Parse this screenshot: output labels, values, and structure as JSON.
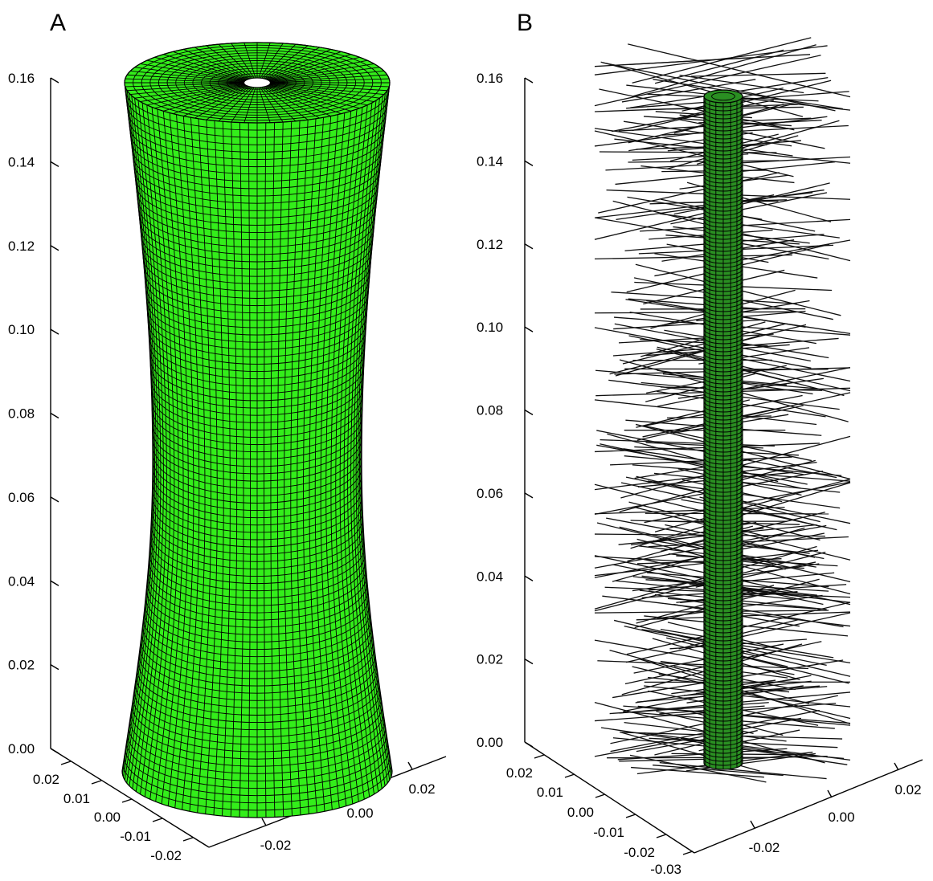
{
  "figure": {
    "panels": [
      {
        "label": "A",
        "object": "hyperboloid-mesh",
        "fill_color": "#33ee1a",
        "mesh_color": "#000000",
        "vertical_ticks": [
          "0.00",
          "0.02",
          "0.04",
          "0.06",
          "0.08",
          "0.10",
          "0.12",
          "0.14",
          "0.16"
        ],
        "left_ticks": [
          "0.02",
          "0.01",
          "0.00",
          "-0.01",
          "-0.02"
        ],
        "right_ticks": [
          "-0.02",
          "0.00",
          "0.02"
        ]
      },
      {
        "label": "B",
        "object": "thin-cylinder-with-fibers",
        "fill_color": "#2a8f22",
        "mesh_color": "#000000",
        "fiber_color": "#111111",
        "vertical_ticks": [
          "0.00",
          "0.02",
          "0.04",
          "0.06",
          "0.08",
          "0.10",
          "0.12",
          "0.14",
          "0.16"
        ],
        "left_ticks": [
          "0.02",
          "0.01",
          "0.00",
          "-0.01",
          "-0.02",
          "-0.03"
        ],
        "right_ticks": [
          "-0.02",
          "0.00",
          "0.02"
        ]
      }
    ]
  }
}
